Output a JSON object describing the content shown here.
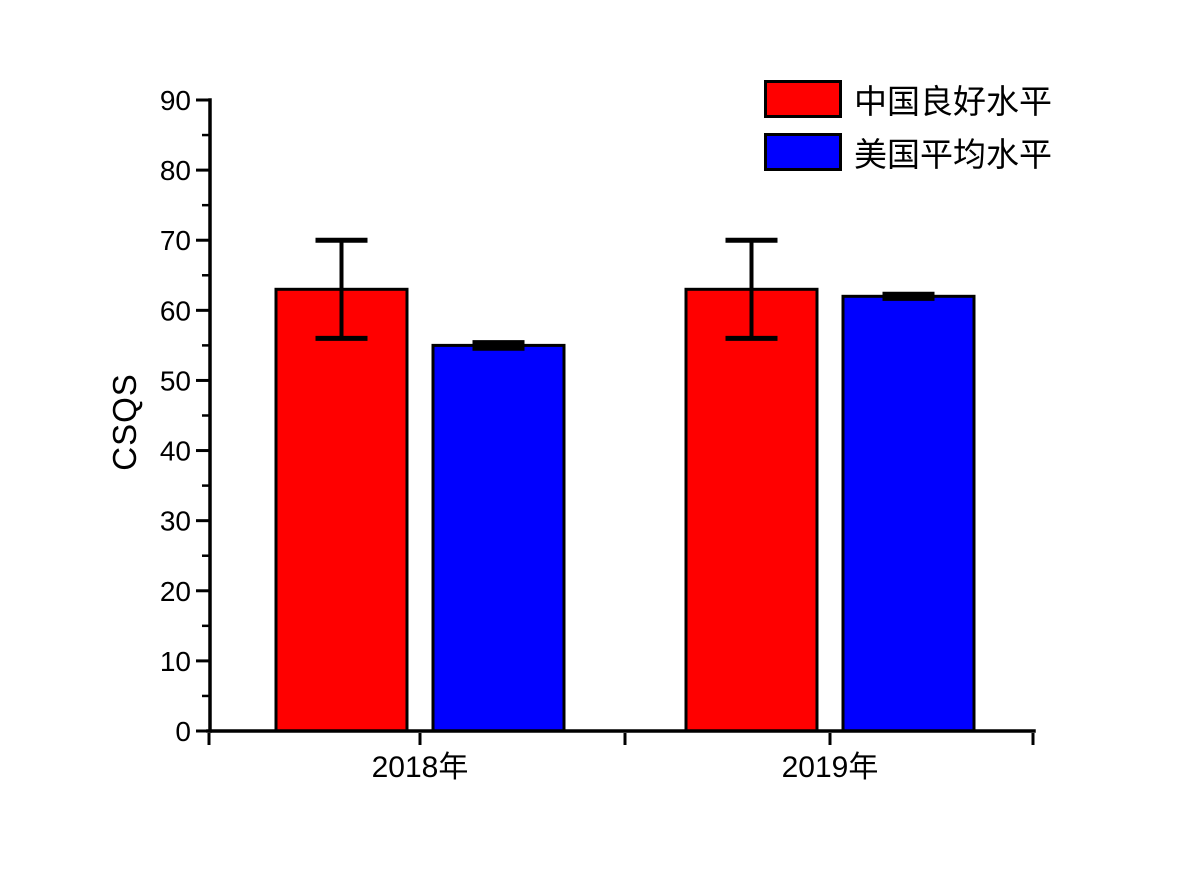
{
  "chart_data": {
    "type": "bar",
    "title": "",
    "categories": [
      "2018年",
      "2019年"
    ],
    "series": [
      {
        "name": "中国良好水平",
        "color": "#FF0000",
        "values": [
          63,
          63
        ],
        "errors": [
          7,
          7
        ]
      },
      {
        "name": "美国平均水平",
        "color": "#0000FF",
        "values": [
          55,
          62
        ],
        "errors": [
          0.4,
          0.3
        ]
      }
    ],
    "xlabel": "",
    "ylabel": "CSQS",
    "ylim": [
      0,
      90
    ],
    "y_major_step": 10,
    "y_minor_step": 5,
    "y_ticks": [
      0,
      10,
      20,
      30,
      40,
      50,
      60,
      70,
      80,
      90
    ],
    "grid": false,
    "legend_position": "top-right",
    "axis_color": "#000000",
    "background": "#FFFFFF"
  }
}
